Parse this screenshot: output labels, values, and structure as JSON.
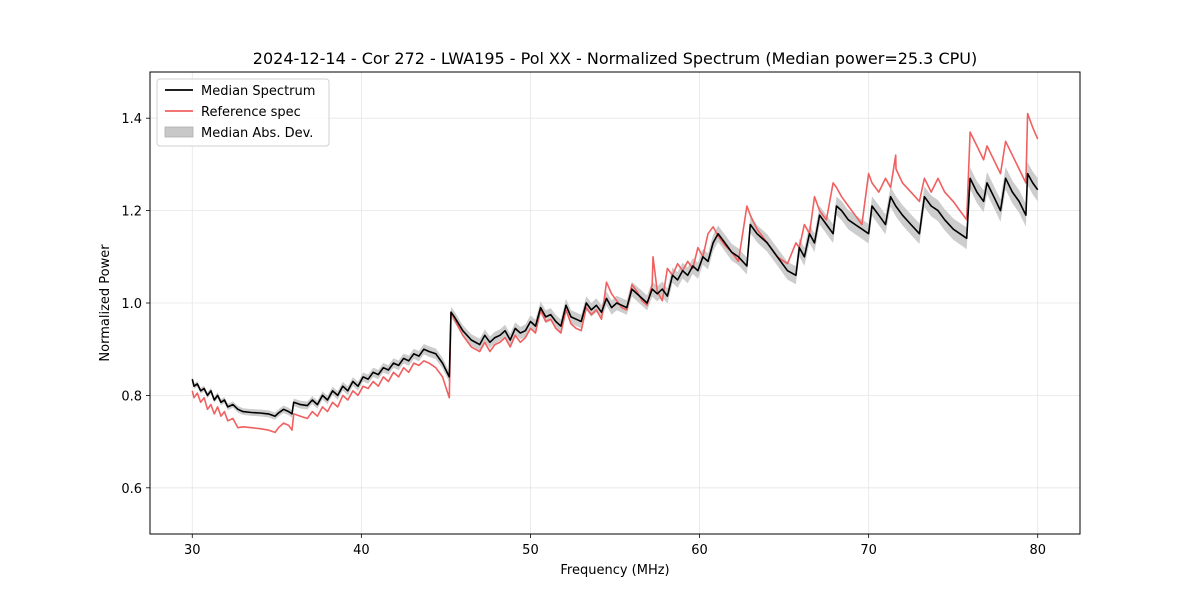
{
  "chart_data": {
    "type": "line",
    "title": "2024-12-14 - Cor 272 - LWA195 - Pol XX - Normalized Spectrum (Median power=25.3 CPU)",
    "xlabel": "Frequency (MHz)",
    "ylabel": "Normalized Power",
    "xlim": [
      27.5,
      82.5
    ],
    "ylim": [
      0.5,
      1.5
    ],
    "xticks": [
      30,
      40,
      50,
      60,
      70,
      80
    ],
    "xtick_labels": [
      "30",
      "40",
      "50",
      "60",
      "70",
      "80"
    ],
    "yticks": [
      0.6,
      0.8,
      1.0,
      1.2,
      1.4
    ],
    "ytick_labels": [
      "0.6",
      "0.8",
      "1.0",
      "1.2",
      "1.4"
    ],
    "grid": true,
    "legend": {
      "position": "top-left",
      "entries": [
        {
          "label": "Median Spectrum",
          "kind": "line",
          "color": "#000000"
        },
        {
          "label": "Reference spec",
          "kind": "line",
          "color": "#f06060"
        },
        {
          "label": "Median Abs. Dev.",
          "kind": "band",
          "color": "#c8c8c8"
        }
      ]
    },
    "series": [
      {
        "name": "Median Spectrum",
        "color": "#000000",
        "x": [
          30.0,
          30.1,
          30.3,
          30.5,
          30.7,
          30.9,
          31.1,
          31.3,
          31.5,
          31.7,
          31.9,
          32.1,
          32.4,
          32.7,
          33.0,
          33.5,
          34.0,
          34.5,
          34.9,
          35.1,
          35.4,
          35.7,
          35.9,
          36.0,
          36.4,
          36.8,
          37.1,
          37.4,
          37.7,
          38.0,
          38.3,
          38.6,
          38.9,
          39.2,
          39.5,
          39.8,
          40.1,
          40.4,
          40.7,
          41.0,
          41.3,
          41.6,
          41.9,
          42.2,
          42.5,
          42.8,
          43.1,
          43.4,
          43.7,
          44.0,
          44.4,
          44.8,
          45.2,
          45.3,
          45.5,
          46.0,
          46.5,
          47.0,
          47.3,
          47.6,
          47.9,
          48.2,
          48.5,
          48.8,
          49.1,
          49.4,
          49.7,
          50.0,
          50.3,
          50.6,
          50.9,
          51.2,
          51.5,
          51.8,
          52.1,
          52.4,
          52.7,
          53.0,
          53.3,
          53.6,
          53.9,
          54.2,
          54.5,
          54.8,
          55.1,
          55.4,
          55.7,
          56.0,
          56.3,
          56.6,
          56.9,
          57.2,
          57.5,
          57.8,
          58.1,
          58.4,
          58.7,
          59.0,
          59.3,
          59.6,
          59.9,
          60.2,
          60.5,
          60.8,
          61.1,
          61.5,
          61.9,
          62.3,
          62.8,
          63.0,
          63.4,
          64.0,
          64.6,
          65.2,
          65.7,
          65.9,
          66.2,
          66.5,
          66.8,
          67.1,
          67.5,
          67.9,
          68.1,
          68.4,
          68.8,
          69.2,
          69.6,
          70.0,
          70.2,
          70.6,
          71.0,
          71.3,
          71.6,
          72.0,
          72.5,
          73.0,
          73.3,
          73.7,
          74.1,
          74.5,
          75.0,
          75.4,
          75.8,
          76.0,
          76.4,
          76.8,
          77.0,
          77.4,
          77.8,
          78.1,
          78.5,
          78.9,
          79.3,
          79.4,
          79.7,
          80.0
        ],
        "y": [
          0.835,
          0.82,
          0.825,
          0.81,
          0.815,
          0.8,
          0.81,
          0.79,
          0.8,
          0.785,
          0.79,
          0.775,
          0.78,
          0.77,
          0.765,
          0.763,
          0.762,
          0.76,
          0.755,
          0.762,
          0.77,
          0.765,
          0.76,
          0.785,
          0.78,
          0.778,
          0.79,
          0.78,
          0.8,
          0.79,
          0.81,
          0.8,
          0.82,
          0.81,
          0.83,
          0.82,
          0.84,
          0.835,
          0.85,
          0.845,
          0.86,
          0.855,
          0.87,
          0.865,
          0.88,
          0.875,
          0.89,
          0.885,
          0.9,
          0.895,
          0.89,
          0.87,
          0.84,
          0.98,
          0.97,
          0.94,
          0.92,
          0.91,
          0.93,
          0.915,
          0.925,
          0.93,
          0.94,
          0.92,
          0.945,
          0.935,
          0.94,
          0.96,
          0.95,
          0.99,
          0.97,
          0.975,
          0.96,
          0.95,
          0.995,
          0.97,
          0.965,
          0.96,
          1.0,
          0.985,
          0.995,
          0.98,
          1.01,
          0.99,
          1.0,
          0.995,
          0.99,
          1.03,
          1.02,
          1.01,
          1.0,
          1.03,
          1.02,
          1.03,
          1.015,
          1.06,
          1.05,
          1.07,
          1.06,
          1.08,
          1.07,
          1.1,
          1.09,
          1.13,
          1.15,
          1.13,
          1.11,
          1.1,
          1.08,
          1.17,
          1.15,
          1.13,
          1.1,
          1.07,
          1.06,
          1.12,
          1.1,
          1.15,
          1.13,
          1.19,
          1.17,
          1.15,
          1.21,
          1.2,
          1.18,
          1.17,
          1.16,
          1.15,
          1.21,
          1.19,
          1.17,
          1.23,
          1.21,
          1.19,
          1.17,
          1.15,
          1.23,
          1.21,
          1.2,
          1.18,
          1.16,
          1.15,
          1.14,
          1.27,
          1.24,
          1.22,
          1.26,
          1.23,
          1.2,
          1.27,
          1.24,
          1.22,
          1.19,
          1.28,
          1.26,
          1.245
        ]
      },
      {
        "name": "Reference spec",
        "color": "#f06060",
        "x": [
          30.0,
          30.1,
          30.3,
          30.5,
          30.7,
          30.9,
          31.1,
          31.3,
          31.5,
          31.7,
          31.9,
          32.1,
          32.4,
          32.7,
          33.0,
          33.5,
          34.0,
          34.5,
          34.9,
          35.1,
          35.4,
          35.7,
          35.9,
          36.0,
          36.4,
          36.8,
          37.1,
          37.4,
          37.7,
          38.0,
          38.3,
          38.6,
          38.9,
          39.2,
          39.5,
          39.8,
          40.1,
          40.4,
          40.7,
          41.0,
          41.3,
          41.6,
          41.9,
          42.2,
          42.5,
          42.8,
          43.1,
          43.4,
          43.7,
          44.0,
          44.4,
          44.8,
          45.2,
          45.3,
          45.5,
          46.0,
          46.5,
          47.0,
          47.3,
          47.6,
          47.9,
          48.2,
          48.5,
          48.8,
          49.1,
          49.4,
          49.7,
          50.0,
          50.3,
          50.6,
          50.9,
          51.2,
          51.5,
          51.8,
          52.1,
          52.4,
          52.7,
          53.0,
          53.3,
          53.6,
          53.9,
          54.2,
          54.5,
          54.8,
          55.1,
          55.4,
          55.7,
          56.0,
          56.3,
          56.6,
          56.9,
          57.2,
          57.25,
          57.5,
          57.8,
          58.1,
          58.4,
          58.7,
          59.0,
          59.3,
          59.6,
          59.9,
          60.2,
          60.5,
          60.8,
          61.1,
          61.5,
          61.9,
          62.3,
          62.8,
          63.0,
          63.4,
          64.0,
          64.6,
          65.2,
          65.7,
          65.9,
          66.2,
          66.5,
          66.8,
          67.1,
          67.5,
          67.9,
          68.1,
          68.4,
          68.8,
          69.2,
          69.6,
          70.0,
          70.2,
          70.6,
          71.0,
          71.3,
          71.6,
          71.62,
          72.0,
          72.5,
          73.0,
          73.3,
          73.7,
          74.1,
          74.5,
          75.0,
          75.4,
          75.8,
          76.0,
          76.4,
          76.8,
          77.0,
          77.4,
          77.8,
          78.1,
          78.5,
          78.9,
          79.3,
          79.4,
          79.7,
          80.0
        ],
        "y": [
          0.81,
          0.795,
          0.805,
          0.785,
          0.795,
          0.77,
          0.78,
          0.76,
          0.775,
          0.755,
          0.765,
          0.745,
          0.75,
          0.73,
          0.732,
          0.73,
          0.728,
          0.725,
          0.72,
          0.73,
          0.74,
          0.735,
          0.725,
          0.76,
          0.755,
          0.75,
          0.765,
          0.755,
          0.775,
          0.765,
          0.785,
          0.775,
          0.8,
          0.79,
          0.81,
          0.8,
          0.82,
          0.815,
          0.83,
          0.82,
          0.84,
          0.83,
          0.85,
          0.84,
          0.86,
          0.85,
          0.87,
          0.865,
          0.875,
          0.87,
          0.86,
          0.84,
          0.795,
          0.98,
          0.965,
          0.93,
          0.905,
          0.895,
          0.915,
          0.895,
          0.91,
          0.915,
          0.925,
          0.905,
          0.93,
          0.915,
          0.925,
          0.945,
          0.935,
          0.985,
          0.96,
          0.965,
          0.945,
          0.935,
          0.985,
          0.955,
          0.945,
          0.94,
          0.99,
          0.975,
          0.985,
          0.965,
          1.045,
          1.02,
          1.005,
          0.99,
          0.985,
          1.04,
          1.025,
          1.005,
          0.995,
          1.04,
          1.1,
          1.025,
          1.005,
          1.075,
          1.06,
          1.085,
          1.07,
          1.09,
          1.075,
          1.12,
          1.1,
          1.15,
          1.165,
          1.145,
          1.125,
          1.11,
          1.09,
          1.21,
          1.19,
          1.16,
          1.13,
          1.1,
          1.085,
          1.13,
          1.12,
          1.17,
          1.15,
          1.23,
          1.2,
          1.18,
          1.26,
          1.25,
          1.23,
          1.21,
          1.19,
          1.17,
          1.28,
          1.26,
          1.24,
          1.27,
          1.25,
          1.32,
          1.29,
          1.26,
          1.24,
          1.22,
          1.27,
          1.24,
          1.27,
          1.24,
          1.22,
          1.2,
          1.18,
          1.37,
          1.34,
          1.31,
          1.34,
          1.31,
          1.28,
          1.35,
          1.32,
          1.29,
          1.26,
          1.41,
          1.38,
          1.355
        ]
      },
      {
        "name": "Median Abs. Dev.",
        "kind": "band",
        "color": "#c8c8c8",
        "half_width_start": 0.006,
        "half_width_end": 0.025
      }
    ]
  }
}
